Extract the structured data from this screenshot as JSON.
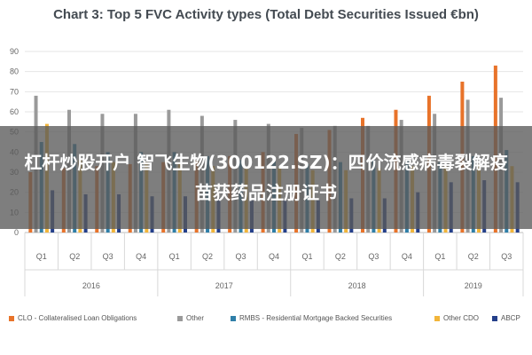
{
  "chart_data": {
    "type": "bar",
    "title": "Chart 3: Top 5 FVC Activity types (Total Debt Securities Issued €bn)",
    "quarters": [
      "Q1",
      "Q2",
      "Q3",
      "Q4",
      "Q1",
      "Q2",
      "Q3",
      "Q4",
      "Q1",
      "Q2",
      "Q3",
      "Q4",
      "Q1",
      "Q2",
      "Q3"
    ],
    "years": [
      {
        "label": "2016",
        "span": 4
      },
      {
        "label": "2017",
        "span": 4
      },
      {
        "label": "2018",
        "span": 4
      },
      {
        "label": "2019",
        "span": 3
      }
    ],
    "ylim": [
      0,
      90
    ],
    "yticks": [
      "0",
      "10",
      "20",
      "30",
      "40",
      "50",
      "60",
      "70",
      "80",
      "90"
    ],
    "grid": true,
    "legend_position": "bottom",
    "series": [
      {
        "name": "CLO - Collateralised Loan Obligations",
        "color": "#e8732a",
        "values": [
          30,
          32,
          33,
          34,
          35,
          36,
          38,
          40,
          49,
          51,
          57,
          61,
          68,
          75,
          83
        ]
      },
      {
        "name": "Other",
        "color": "#9a9a9a",
        "values": [
          68,
          61,
          59,
          59,
          61,
          58,
          56,
          54,
          52,
          53,
          53,
          56,
          59,
          66,
          67
        ]
      },
      {
        "name": "RMBS - Residential Mortgage Backed Securities",
        "color": "#2f7fa8",
        "values": [
          45,
          44,
          40,
          40,
          40,
          38,
          36,
          36,
          34,
          35,
          36,
          36,
          35,
          38,
          41
        ]
      },
      {
        "name": "Other CDO",
        "color": "#f2b53a",
        "values": [
          54,
          36,
          35,
          35,
          35,
          33,
          32,
          32,
          31,
          31,
          32,
          33,
          33,
          34,
          33
        ]
      },
      {
        "name": "ABCP",
        "color": "#243f8a",
        "values": [
          21,
          19,
          19,
          18,
          18,
          17,
          16,
          16,
          16,
          17,
          17,
          20,
          25,
          26,
          25
        ]
      }
    ]
  },
  "overlay": {
    "text": "杠杆炒股开户 智飞生物(300122.SZ)：四价流感病毒裂解疫苗获药品注册证书"
  }
}
